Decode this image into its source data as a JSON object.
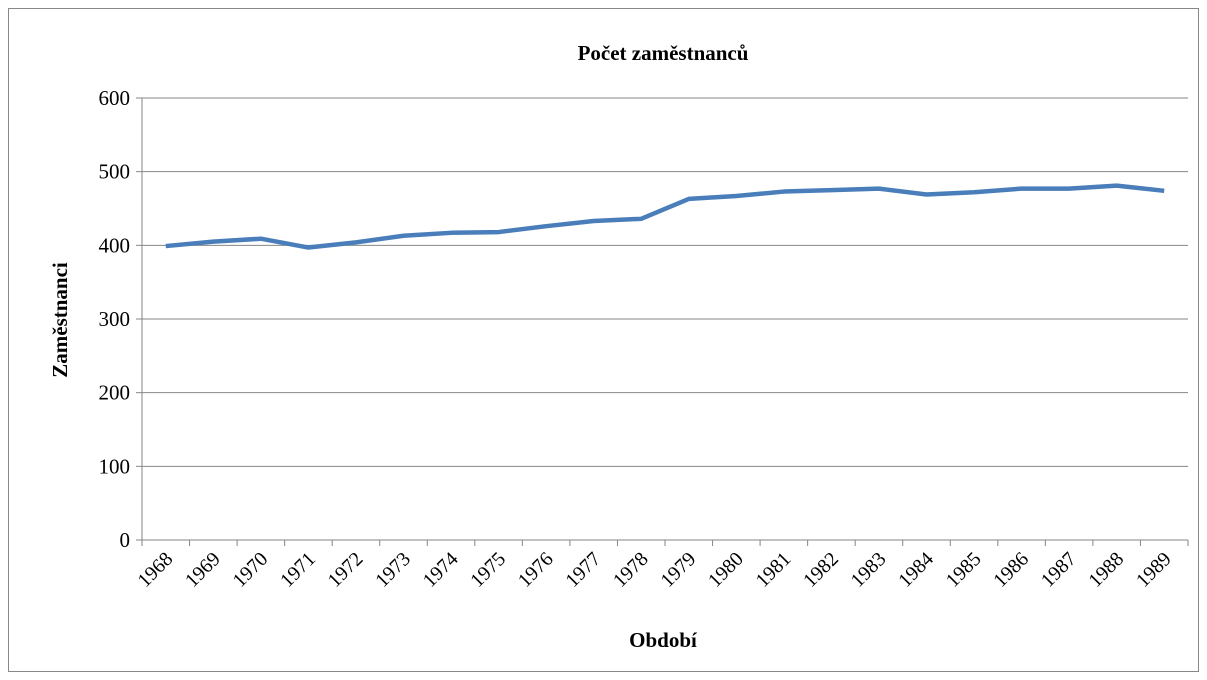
{
  "chart_data": {
    "type": "line",
    "title": "Počet zaměstnanců",
    "x_label": "Období",
    "y_label": "Zaměstnanci",
    "categories": [
      "1968",
      "1969",
      "1970",
      "1971",
      "1972",
      "1973",
      "1974",
      "1975",
      "1976",
      "1977",
      "1978",
      "1979",
      "1980",
      "1981",
      "1982",
      "1983",
      "1984",
      "1985",
      "1986",
      "1987",
      "1988",
      "1989"
    ],
    "series": [
      {
        "name": "Zaměstnanci",
        "color": "#4a7ebb",
        "values": [
          399,
          405,
          409,
          397,
          404,
          413,
          417,
          418,
          426,
          433,
          436,
          463,
          467,
          473,
          475,
          477,
          469,
          472,
          477,
          477,
          481,
          474
        ]
      }
    ],
    "ylim": [
      0,
      600
    ],
    "yticks": [
      0,
      100,
      200,
      300,
      400,
      500,
      600
    ],
    "grid": true
  }
}
